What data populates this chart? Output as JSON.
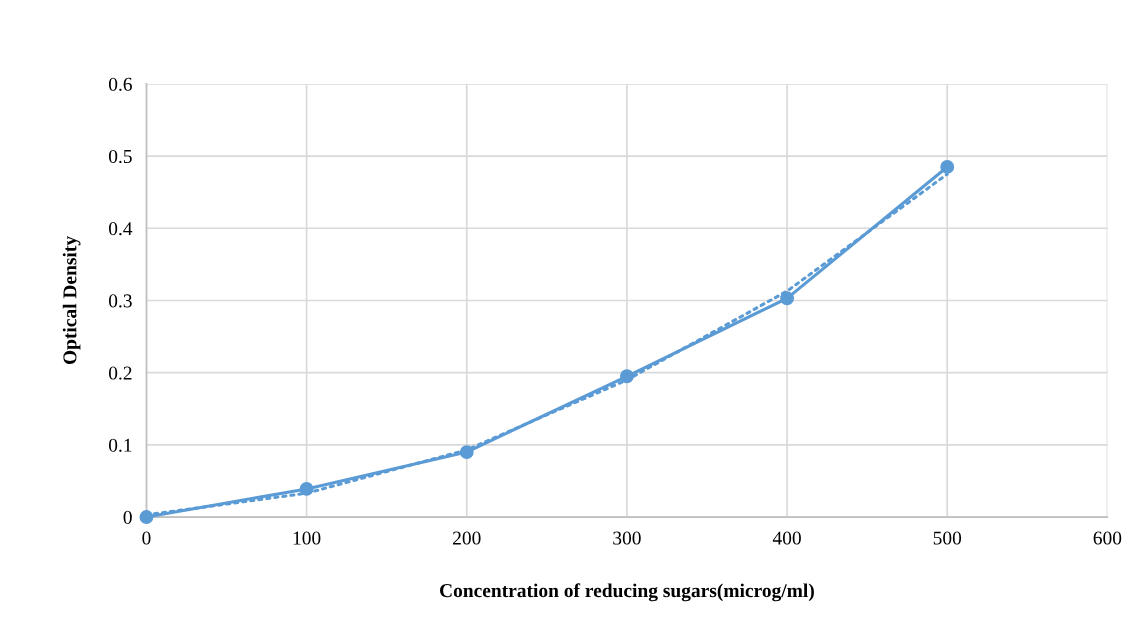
{
  "chart_data": {
    "type": "line",
    "xlabel": "Concentration of reducing sugars(microg/ml)",
    "ylabel": "Optical Density",
    "x": [
      0,
      100,
      200,
      300,
      400,
      500
    ],
    "series": [
      {
        "color": "#5b9bd5",
        "values": [
          0,
          0.039,
          0.09,
          0.195,
          0.303,
          0.485
        ],
        "marker": "circle",
        "line_style": "solid"
      },
      {
        "type": "line",
        "color": "#5b9bd5",
        "x": [
          0,
          100,
          200,
          300,
          400,
          500
        ],
        "values": [
          0.003,
          0.033,
          0.093,
          0.19,
          0.313,
          0.475
        ],
        "marker": "none",
        "line_style": "dotted"
      }
    ],
    "xlim": [
      0,
      600
    ],
    "xticks": [
      0,
      100,
      200,
      300,
      400,
      500,
      600
    ],
    "ylim": [
      0,
      0.6
    ],
    "yticks": [
      0,
      0.1,
      0.2,
      0.3,
      0.4,
      0.5,
      0.6
    ],
    "grid": true,
    "legend": false
  }
}
